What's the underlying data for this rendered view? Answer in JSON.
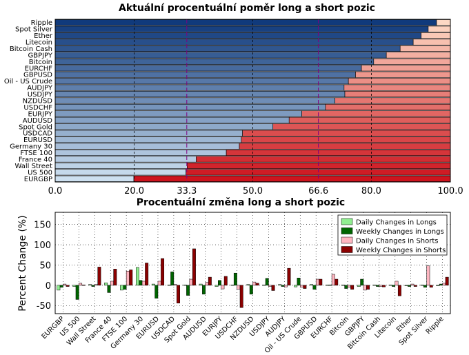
{
  "chart_data": [
    {
      "type": "bar",
      "orientation": "horizontal-stacked",
      "title": "Aktuální procentuální poměr long a short pozic",
      "categories": [
        "Ripple",
        "Spot Silver",
        "Ether",
        "Litecoin",
        "Bitcoin Cash",
        "GBPJPY",
        "Bitcoin",
        "EURCHF",
        "GBPUSD",
        "Oil - US Crude",
        "AUDJPY",
        "USDJPY",
        "NZDUSD",
        "USDCHF",
        "EURJPY",
        "AUDUSD",
        "Spot Gold",
        "USDCAD",
        "EURUSD",
        "Germany 30",
        "FTSE 100",
        "France 40",
        "Wall Street",
        "US 500",
        "EURGBP"
      ],
      "long_values": [
        96.5,
        94.4,
        92.6,
        90.6,
        87.3,
        83.8,
        80.6,
        77.5,
        76.0,
        74.2,
        73.1,
        73.3,
        70.8,
        68.4,
        62.4,
        59.2,
        55.1,
        47.4,
        47.1,
        46.6,
        43.3,
        35.7,
        33.4,
        33.1,
        19.9
      ],
      "xlim": [
        0,
        100
      ],
      "xticks": [
        "0.0",
        "20.0",
        "33.3",
        "50.0",
        "66.6",
        "80.0",
        "100.0"
      ],
      "highlight_lines": [
        33.3,
        66.6
      ],
      "grid": true
    },
    {
      "type": "bar",
      "orientation": "vertical-grouped",
      "title": "Procentuální změna long a short pozic",
      "ylabel": "Percent Change (%)",
      "ylim": [
        -70,
        180
      ],
      "yticks": [
        -50,
        0,
        50,
        100,
        150
      ],
      "legend_position": "top-right",
      "categories": [
        "EURGBP",
        "US 500",
        "Wall Street",
        "France 40",
        "FTSE 100",
        "Germany 30",
        "EURUSD",
        "USDCAD",
        "Spot Gold",
        "AUDUSD",
        "EURJPY",
        "USDCHF",
        "NZDUSD",
        "USDJPY",
        "AUDJPY",
        "Oil - US Crude",
        "GBPUSD",
        "EURCHF",
        "Bitcoin",
        "GBPJPY",
        "Bitcoin Cash",
        "Litecoin",
        "Ether",
        "Spot Silver",
        "Ripple"
      ],
      "series": [
        {
          "name": "Daily Changes in Longs",
          "color": "#90ee90",
          "values": [
            -12,
            -3,
            2,
            6,
            -12,
            44,
            3,
            1,
            1,
            3,
            -3,
            1,
            2,
            1,
            2,
            -4,
            2,
            1,
            1,
            -3,
            1,
            1,
            0,
            1,
            0
          ]
        },
        {
          "name": "Weekly Changes in Longs",
          "color": "#006400",
          "values": [
            -5,
            -35,
            -3,
            -18,
            -10,
            12,
            -32,
            33,
            -25,
            -22,
            12,
            30,
            -22,
            17,
            -3,
            18,
            -10,
            1,
            -8,
            15,
            -3,
            -3,
            -3,
            -5,
            3
          ]
        },
        {
          "name": "Daily Changes in Shorts",
          "color": "#ffb6c1",
          "values": [
            3,
            5,
            2,
            10,
            35,
            10,
            10,
            2,
            15,
            7,
            -9,
            -10,
            8,
            -3,
            -4,
            -5,
            15,
            27,
            -5,
            -12,
            -3,
            10,
            3,
            48,
            5
          ]
        },
        {
          "name": "Weekly Changes in Shorts",
          "color": "#8b0000",
          "values": [
            -3,
            1,
            45,
            40,
            38,
            55,
            66,
            -44,
            90,
            20,
            22,
            -55,
            5,
            -13,
            42,
            -8,
            15,
            15,
            -10,
            -10,
            -4,
            -26,
            -3,
            -5,
            20
          ]
        }
      ]
    }
  ]
}
